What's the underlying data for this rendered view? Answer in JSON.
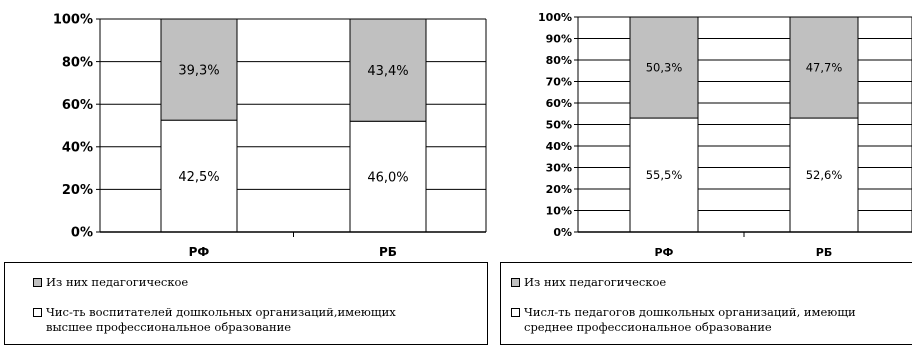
{
  "colors": {
    "ped_color": "#c0c0c0",
    "total_color": "#ffffff",
    "grid": "#000000"
  },
  "chart_data": [
    {
      "type": "bar",
      "stacked": true,
      "categories": [
        "РФ",
        "РБ"
      ],
      "series": [
        {
          "name": "Чис-ть воспитателей дошкольных организаций,имеющих высшее профессиональное образование",
          "values": [
            52.5,
            52.0
          ],
          "labels": [
            "42,5%",
            "46,0%"
          ]
        },
        {
          "name": "Из них педагогическое",
          "values": [
            47.5,
            48.0
          ],
          "labels": [
            "39,3%",
            "43,4%"
          ]
        }
      ],
      "ylim": [
        0,
        100
      ],
      "yticks": [
        "0%",
        "20%",
        "40%",
        "60%",
        "80%",
        "100%"
      ],
      "grid": true,
      "legend_position": "bottom"
    },
    {
      "type": "bar",
      "stacked": true,
      "categories": [
        "РФ",
        "РБ"
      ],
      "series": [
        {
          "name": "Числ-ть педагогов дошкольных организаций, имеющих среднее профессиональное образование",
          "values": [
            53,
            53
          ],
          "labels": [
            "55,5%",
            "52,6%"
          ]
        },
        {
          "name": "Из них педагогическое",
          "values": [
            47,
            47
          ],
          "labels": [
            "50,3%",
            "47,7%"
          ]
        }
      ],
      "ylim": [
        0,
        100
      ],
      "yticks": [
        "0%",
        "10%",
        "20%",
        "30%",
        "40%",
        "50%",
        "60%",
        "70%",
        "80%",
        "90%",
        "100%"
      ],
      "grid": true,
      "legend_position": "bottom"
    }
  ],
  "legend_left": {
    "ped_label": "Из них педагогическое",
    "total_label": "Чис-ть воспитателей дошкольных организаций,имеющих\nвысшее профессиональное образование"
  },
  "legend_right": {
    "ped_label": "Из них педагогическое",
    "total_label": "Числ-ть педагогов дошкольных организаций, имеющи\nсреднее профессиональное образование"
  }
}
